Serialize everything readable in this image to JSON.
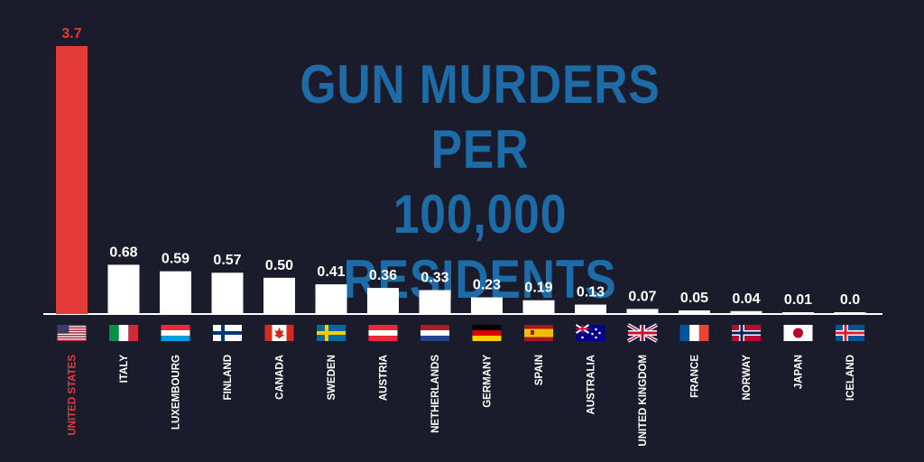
{
  "colors": {
    "background": "#1b1c2b",
    "title": "#1d6ca8",
    "bar_default": "#ffffff",
    "bar_highlight": "#e43a3a",
    "label_default": "#ffffff",
    "label_highlight": "#e43a3a",
    "baseline": "#ffffff"
  },
  "chart_data": {
    "type": "bar",
    "title_lines": [
      "GUN MURDERS PER",
      "100,000 RESIDENTS"
    ],
    "categories": [
      "UNITED STATES",
      "ITALY",
      "LUXEMBOURG",
      "FINLAND",
      "CANADA",
      "SWEDEN",
      "AUSTRIA",
      "NETHERLANDS",
      "GERMANY",
      "SPAIN",
      "AUSTRALIA",
      "UNITED KINGDOM",
      "FRANCE",
      "NORWAY",
      "JAPAN",
      "ICELAND"
    ],
    "values": [
      3.7,
      0.68,
      0.59,
      0.57,
      0.5,
      0.41,
      0.36,
      0.33,
      0.23,
      0.19,
      0.13,
      0.07,
      0.05,
      0.04,
      0.01,
      0.0
    ],
    "value_labels": [
      "3.7",
      "0.68",
      "0.59",
      "0.57",
      "0.50",
      "0.41",
      "0.36",
      "0.33",
      "0.23",
      "0.19",
      "0.13",
      "0.07",
      "0.05",
      "0.04",
      "0.01",
      "0.0"
    ],
    "flag_icons": [
      "us-flag-icon",
      "italy-flag-icon",
      "luxembourg-flag-icon",
      "finland-flag-icon",
      "canada-flag-icon",
      "sweden-flag-icon",
      "austria-flag-icon",
      "netherlands-flag-icon",
      "germany-flag-icon",
      "spain-flag-icon",
      "australia-flag-icon",
      "uk-flag-icon",
      "france-flag-icon",
      "norway-flag-icon",
      "japan-flag-icon",
      "iceland-flag-icon"
    ],
    "highlight_category": "UNITED STATES",
    "ylim": [
      0,
      3.7
    ],
    "grid": false,
    "legend": "none"
  }
}
